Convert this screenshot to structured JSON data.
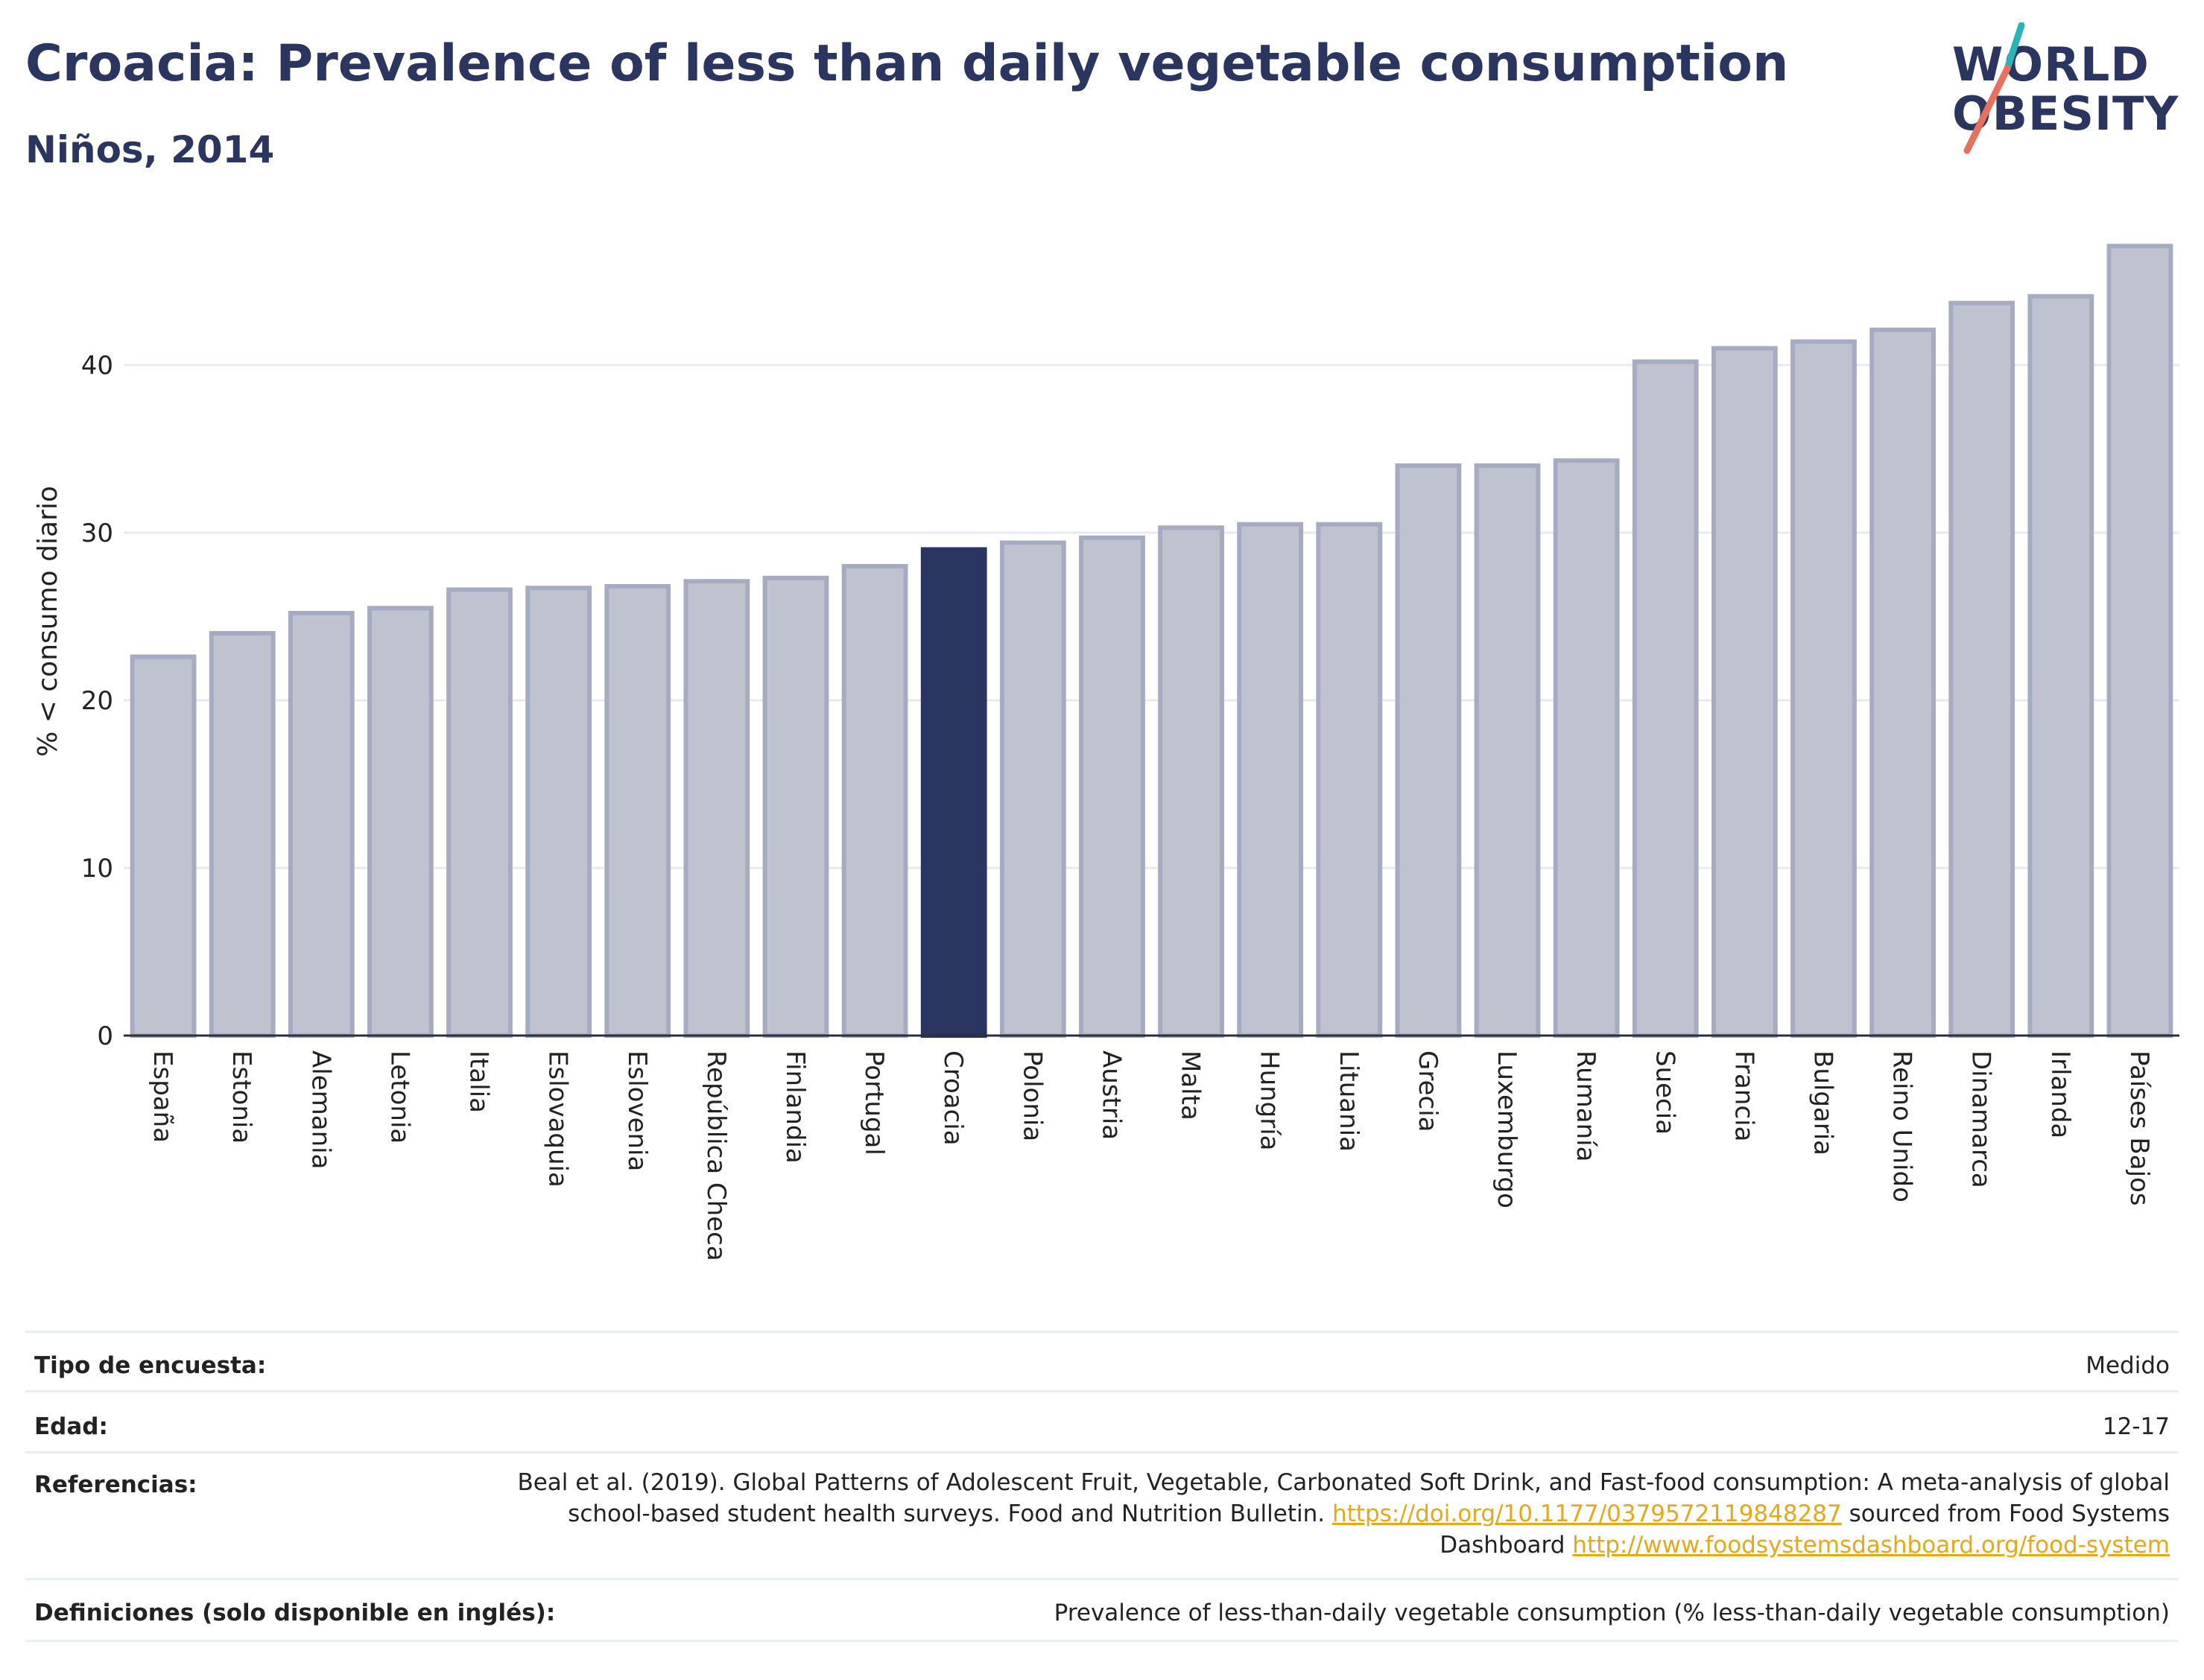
{
  "header": {
    "title": "Croacia: Prevalence of less than daily vegetable consumption",
    "subtitle": "Niños, 2014"
  },
  "logo": {
    "line1": "WORLD",
    "line2": "OBESITY",
    "accent_colors": [
      "#2ab3b8",
      "#e8705f"
    ]
  },
  "chart_data": {
    "type": "bar",
    "ylabel": "% < consumo diario",
    "ylim": [
      0,
      48
    ],
    "yticks": [
      0,
      10,
      20,
      30,
      40
    ],
    "grid": true,
    "highlight": "Croacia",
    "colors": {
      "bar": "#bfc3d0",
      "bar_border": "#a5abc0",
      "highlight": "#2a3560"
    },
    "categories": [
      "España",
      "Estonia",
      "Alemania",
      "Letonia",
      "Italia",
      "Eslovaquia",
      "Eslovenia",
      "República Checa",
      "Finlandia",
      "Portugal",
      "Croacia",
      "Polonia",
      "Austria",
      "Malta",
      "Hungría",
      "Lituania",
      "Grecia",
      "Luxemburgo",
      "Rumanía",
      "Suecia",
      "Francia",
      "Bulgaria",
      "Reino Unido",
      "Dinamarca",
      "Irlanda",
      "Países Bajos"
    ],
    "values": [
      22.6,
      24.0,
      25.2,
      25.5,
      26.6,
      26.7,
      26.8,
      27.1,
      27.3,
      28.0,
      29.0,
      29.4,
      29.7,
      30.3,
      30.5,
      30.5,
      34.0,
      34.0,
      34.3,
      40.2,
      41.0,
      41.4,
      42.1,
      43.7,
      44.1,
      47.1
    ]
  },
  "info": {
    "survey_label": "Tipo de encuesta:",
    "survey_value": "Medido",
    "age_label": "Edad:",
    "age_value": "12-17",
    "ref_label": "Referencias:",
    "ref_text1": "Beal et al. (2019). Global Patterns of Adolescent Fruit, Vegetable, Carbonated Soft Drink, and Fast-food consumption: A meta-analysis of global school-based student health surveys. Food and Nutrition Bulletin.",
    "ref_link1": "https://doi.org/10.1177/0379572119848287",
    "ref_text2": "sourced from Food Systems Dashboard",
    "ref_link2": "http://www.foodsystemsdashboard.org/food-system",
    "def_label": "Definiciones (solo disponible en inglés):",
    "def_value": "Prevalence of less-than-daily vegetable consumption (% less-than-daily vegetable consumption)"
  }
}
